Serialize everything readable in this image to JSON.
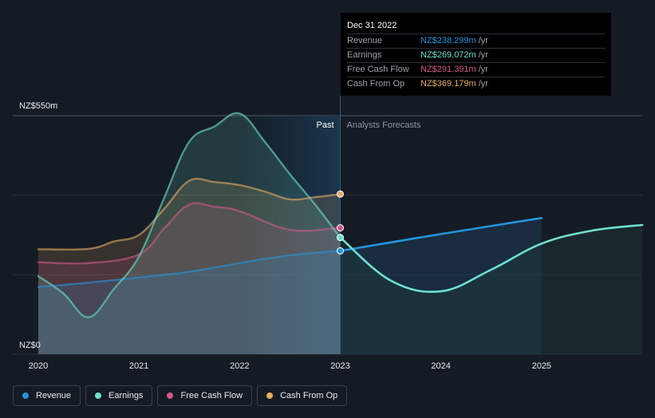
{
  "chart_data": {
    "type": "line",
    "y_tick_labels": [
      "NZ$550m",
      "NZ$0"
    ],
    "ylim": [
      0,
      550
    ],
    "xlim": [
      2020,
      2026
    ],
    "x_tick_labels": [
      "2020",
      "2021",
      "2022",
      "2023",
      "2024",
      "2025"
    ],
    "x_ticks": [
      2020,
      2021,
      2022,
      2023,
      2024,
      2025
    ],
    "divider_x": 2023,
    "past_label": "Past",
    "forecast_label": "Analysts Forecasts",
    "grid": true,
    "series": [
      {
        "name": "Revenue",
        "color": "#2394df",
        "points": [
          [
            2020,
            155
          ],
          [
            2020.5,
            165
          ],
          [
            2021,
            177
          ],
          [
            2021.5,
            190
          ],
          [
            2022,
            210
          ],
          [
            2022.5,
            228
          ],
          [
            2023,
            238.3
          ]
        ],
        "forecast": [
          [
            2023,
            238.3
          ],
          [
            2024,
            277
          ],
          [
            2025,
            314
          ]
        ]
      },
      {
        "name": "Earnings",
        "color": "#6de0cf",
        "points": [
          [
            2020,
            180
          ],
          [
            2020.25,
            140
          ],
          [
            2020.5,
            85
          ],
          [
            2020.75,
            150
          ],
          [
            2021,
            225
          ],
          [
            2021.25,
            360
          ],
          [
            2021.5,
            490
          ],
          [
            2021.75,
            525
          ],
          [
            2022,
            555
          ],
          [
            2022.25,
            490
          ],
          [
            2022.5,
            415
          ],
          [
            2022.75,
            345
          ],
          [
            2023,
            269.1
          ]
        ],
        "forecast": [
          [
            2023,
            269.1
          ],
          [
            2023.5,
            170
          ],
          [
            2024,
            145
          ],
          [
            2024.5,
            195
          ],
          [
            2025,
            255
          ],
          [
            2025.5,
            285
          ],
          [
            2026,
            298
          ]
        ]
      },
      {
        "name": "Free Cash Flow",
        "color": "#d4588a",
        "points": [
          [
            2020,
            212
          ],
          [
            2020.5,
            210
          ],
          [
            2021,
            230
          ],
          [
            2021.25,
            290
          ],
          [
            2021.5,
            345
          ],
          [
            2021.75,
            340
          ],
          [
            2022,
            330
          ],
          [
            2022.5,
            287
          ],
          [
            2023,
            291.4
          ]
        ],
        "forecast": []
      },
      {
        "name": "Cash From Op",
        "color": "#e7ac63",
        "points": [
          [
            2020,
            242
          ],
          [
            2020.5,
            243
          ],
          [
            2020.75,
            260
          ],
          [
            2021,
            275
          ],
          [
            2021.25,
            335
          ],
          [
            2021.5,
            400
          ],
          [
            2021.75,
            397
          ],
          [
            2022,
            390
          ],
          [
            2022.25,
            375
          ],
          [
            2022.5,
            357
          ],
          [
            2022.75,
            362
          ],
          [
            2023,
            369.2
          ]
        ],
        "forecast": []
      }
    ]
  },
  "tooltip": {
    "date": "Dec 31 2022",
    "rows": [
      {
        "name": "Revenue",
        "value": "NZ$238.299m",
        "unit": "/yr",
        "color": "#2394df"
      },
      {
        "name": "Earnings",
        "value": "NZ$269.072m",
        "unit": "/yr",
        "color": "#6de0cf"
      },
      {
        "name": "Free Cash Flow",
        "value": "NZ$291.391m",
        "unit": "/yr",
        "color": "#d4588a"
      },
      {
        "name": "Cash From Op",
        "value": "NZ$369.179m",
        "unit": "/yr",
        "color": "#e7ac63"
      }
    ]
  },
  "legend": {
    "items": [
      {
        "label": "Revenue",
        "color": "#2394df"
      },
      {
        "label": "Earnings",
        "color": "#6de0cf"
      },
      {
        "label": "Free Cash Flow",
        "color": "#d4588a"
      },
      {
        "label": "Cash From Op",
        "color": "#e7ac63"
      }
    ]
  }
}
